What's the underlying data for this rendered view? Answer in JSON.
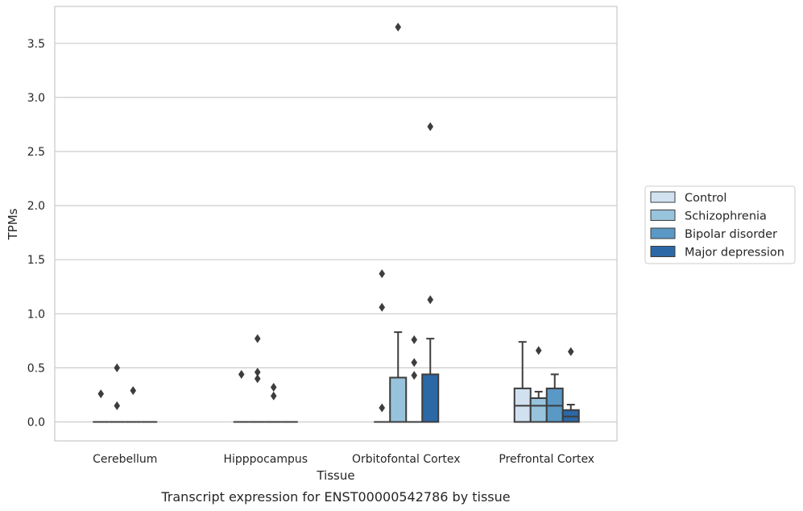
{
  "caption": "Transcript expression for ENST00000542786 by tissue",
  "chart_data": {
    "type": "box",
    "xlabel": "Tissue",
    "ylabel": "TPMs",
    "ylim": [
      -0.18,
      3.84
    ],
    "yticks": [
      0.0,
      0.5,
      1.0,
      1.5,
      2.0,
      2.5,
      3.0,
      3.5
    ],
    "ytick_labels": [
      "0.0",
      "0.5",
      "1.0",
      "1.5",
      "2.0",
      "2.5",
      "3.0",
      "3.5"
    ],
    "grid": "horizontal",
    "legend_position": "right",
    "categories": [
      "Cerebellum",
      "Hipppocampus",
      "Orbitofontal Cortex",
      "Prefrontal Cortex"
    ],
    "series": [
      {
        "name": "Control",
        "color": "#d1e1f0",
        "boxes": [
          {
            "q1": 0,
            "median": 0,
            "q3": 0,
            "whisker_low": 0,
            "whisker_high": 0,
            "outliers": [
              0.26
            ]
          },
          {
            "q1": 0,
            "median": 0,
            "q3": 0,
            "whisker_low": 0,
            "whisker_high": 0,
            "outliers": [
              0.44
            ]
          },
          {
            "q1": 0,
            "median": 0,
            "q3": 0,
            "whisker_low": 0,
            "whisker_high": 0,
            "outliers": [
              0.13,
              1.06,
              1.37
            ]
          },
          {
            "q1": 0,
            "median": 0.15,
            "q3": 0.31,
            "whisker_low": 0,
            "whisker_high": 0.74,
            "outliers": []
          }
        ]
      },
      {
        "name": "Schizophrenia",
        "color": "#98c3dc",
        "boxes": [
          {
            "q1": 0,
            "median": 0,
            "q3": 0,
            "whisker_low": 0,
            "whisker_high": 0,
            "outliers": [
              0.15,
              0.5
            ]
          },
          {
            "q1": 0,
            "median": 0,
            "q3": 0,
            "whisker_low": 0,
            "whisker_high": 0,
            "outliers": [
              0.4,
              0.46,
              0.77
            ]
          },
          {
            "q1": 0,
            "median": 0,
            "q3": 0.41,
            "whisker_low": 0,
            "whisker_high": 0.83,
            "outliers": [
              3.65
            ]
          },
          {
            "q1": 0,
            "median": 0.15,
            "q3": 0.22,
            "whisker_low": 0,
            "whisker_high": 0.28,
            "outliers": [
              0.66
            ]
          }
        ]
      },
      {
        "name": "Bipolar disorder",
        "color": "#5a98c5",
        "boxes": [
          {
            "q1": 0,
            "median": 0,
            "q3": 0,
            "whisker_low": 0,
            "whisker_high": 0,
            "outliers": [
              0.29
            ]
          },
          {
            "q1": 0,
            "median": 0,
            "q3": 0,
            "whisker_low": 0,
            "whisker_high": 0,
            "outliers": [
              0.24,
              0.32
            ]
          },
          {
            "q1": 0,
            "median": 0,
            "q3": 0,
            "whisker_low": 0,
            "whisker_high": 0,
            "outliers": [
              0.43,
              0.55,
              0.76
            ]
          },
          {
            "q1": 0,
            "median": 0.15,
            "q3": 0.31,
            "whisker_low": 0,
            "whisker_high": 0.44,
            "outliers": []
          }
        ]
      },
      {
        "name": "Major depression",
        "color": "#2c68a6",
        "boxes": [
          {
            "q1": 0,
            "median": 0,
            "q3": 0,
            "whisker_low": 0,
            "whisker_high": 0,
            "outliers": []
          },
          {
            "q1": 0,
            "median": 0,
            "q3": 0,
            "whisker_low": 0,
            "whisker_high": 0,
            "outliers": []
          },
          {
            "q1": 0,
            "median": 0,
            "q3": 0.44,
            "whisker_low": 0,
            "whisker_high": 0.77,
            "outliers": [
              1.13,
              2.73
            ]
          },
          {
            "q1": 0,
            "median": 0.05,
            "q3": 0.11,
            "whisker_low": 0,
            "whisker_high": 0.16,
            "outliers": [
              0.65
            ]
          }
        ]
      }
    ]
  }
}
